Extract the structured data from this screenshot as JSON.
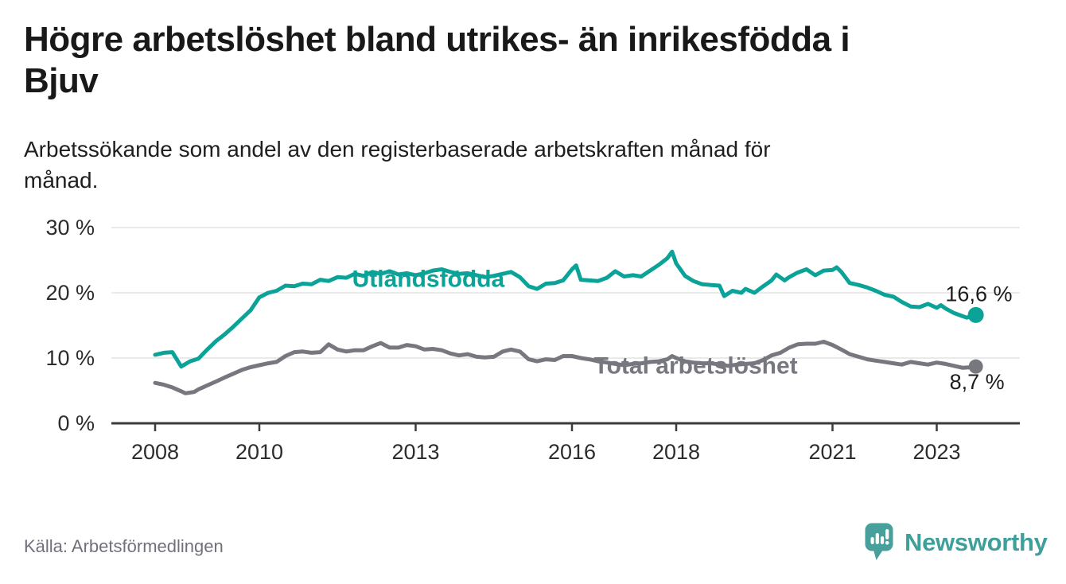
{
  "header": {
    "title_line1": "Högre arbetslöshet bland utrikes- än inrikesfödda i",
    "title_line2": "Bjuv",
    "subtitle_line1": "Arbetssökande som andel av den registerbaserade arbetskraften månad för",
    "subtitle_line2": "månad."
  },
  "footer": {
    "source": "Källa: Arbetsförmedlingen",
    "brand": "Newsworthy"
  },
  "colors": {
    "accent_teal": "#0ba298",
    "line_gray": "#77777f",
    "grid": "#e3e3e3",
    "axis": "#3b3b3b",
    "axis_text": "#2c2c2c",
    "annotation_text": "#1d1d1d",
    "brand_teal": "#47a09b"
  },
  "chart_data": {
    "type": "line",
    "title": "Högre arbetslöshet bland utrikes- än inrikesfödda i Bjuv",
    "subtitle": "Arbetssökande som andel av den registerbaserade arbetskraften månad för månad.",
    "xlabel": "",
    "ylabel": "",
    "x_axis": {
      "ticks": [
        2008,
        2010,
        2013,
        2016,
        2018,
        2021,
        2023
      ],
      "tick_labels": [
        "2008",
        "2010",
        "2013",
        "2016",
        "2018",
        "2021",
        "2023"
      ],
      "range": [
        2007.16,
        2024.6
      ]
    },
    "y_axis": {
      "ticks": [
        0,
        10,
        20,
        30
      ],
      "tick_labels": [
        "0 %",
        "10 %",
        "20 %",
        "30 %"
      ],
      "range": [
        0,
        30
      ],
      "grid": true
    },
    "legend_position": "inline-labels",
    "series": [
      {
        "name": "Utlandsfödda",
        "color": "#0ba298",
        "end_value": 16.6,
        "end_label": "16,6 %",
        "points": [
          [
            2008.0,
            10.5
          ],
          [
            2008.17,
            10.8
          ],
          [
            2008.33,
            10.9
          ],
          [
            2008.5,
            8.7
          ],
          [
            2008.67,
            9.5
          ],
          [
            2008.83,
            9.9
          ],
          [
            2009.0,
            11.3
          ],
          [
            2009.17,
            12.6
          ],
          [
            2009.33,
            13.6
          ],
          [
            2009.5,
            14.8
          ],
          [
            2009.67,
            16.1
          ],
          [
            2009.83,
            17.3
          ],
          [
            2010.0,
            19.3
          ],
          [
            2010.17,
            20.0
          ],
          [
            2010.33,
            20.3
          ],
          [
            2010.5,
            21.1
          ],
          [
            2010.67,
            21.0
          ],
          [
            2010.83,
            21.4
          ],
          [
            2011.0,
            21.3
          ],
          [
            2011.17,
            22.0
          ],
          [
            2011.33,
            21.8
          ],
          [
            2011.5,
            22.4
          ],
          [
            2011.67,
            22.3
          ],
          [
            2011.83,
            22.9
          ],
          [
            2012.0,
            22.6
          ],
          [
            2012.17,
            23.2
          ],
          [
            2012.33,
            22.9
          ],
          [
            2012.5,
            23.3
          ],
          [
            2012.67,
            22.8
          ],
          [
            2012.83,
            23.0
          ],
          [
            2013.0,
            22.7
          ],
          [
            2013.17,
            23.0
          ],
          [
            2013.33,
            23.4
          ],
          [
            2013.5,
            23.6
          ],
          [
            2013.67,
            23.2
          ],
          [
            2013.83,
            22.9
          ],
          [
            2014.0,
            23.0
          ],
          [
            2014.17,
            22.7
          ],
          [
            2014.33,
            22.4
          ],
          [
            2014.5,
            22.6
          ],
          [
            2014.67,
            22.9
          ],
          [
            2014.83,
            23.2
          ],
          [
            2015.0,
            22.4
          ],
          [
            2015.17,
            21.0
          ],
          [
            2015.33,
            20.6
          ],
          [
            2015.5,
            21.4
          ],
          [
            2015.67,
            21.5
          ],
          [
            2015.83,
            21.9
          ],
          [
            2016.0,
            23.6
          ],
          [
            2016.08,
            24.2
          ],
          [
            2016.17,
            22.0
          ],
          [
            2016.33,
            21.9
          ],
          [
            2016.5,
            21.8
          ],
          [
            2016.67,
            22.3
          ],
          [
            2016.83,
            23.3
          ],
          [
            2017.0,
            22.5
          ],
          [
            2017.17,
            22.7
          ],
          [
            2017.33,
            22.5
          ],
          [
            2017.5,
            23.4
          ],
          [
            2017.67,
            24.3
          ],
          [
            2017.83,
            25.3
          ],
          [
            2017.92,
            26.3
          ],
          [
            2018.0,
            24.5
          ],
          [
            2018.17,
            22.6
          ],
          [
            2018.33,
            21.8
          ],
          [
            2018.5,
            21.3
          ],
          [
            2018.67,
            21.2
          ],
          [
            2018.83,
            21.1
          ],
          [
            2018.92,
            19.5
          ],
          [
            2019.08,
            20.3
          ],
          [
            2019.25,
            20.0
          ],
          [
            2019.33,
            20.6
          ],
          [
            2019.5,
            20.0
          ],
          [
            2019.67,
            21.0
          ],
          [
            2019.83,
            21.9
          ],
          [
            2019.92,
            22.8
          ],
          [
            2020.08,
            21.9
          ],
          [
            2020.17,
            22.4
          ],
          [
            2020.33,
            23.1
          ],
          [
            2020.5,
            23.6
          ],
          [
            2020.67,
            22.7
          ],
          [
            2020.83,
            23.4
          ],
          [
            2021.0,
            23.5
          ],
          [
            2021.08,
            23.9
          ],
          [
            2021.17,
            23.2
          ],
          [
            2021.33,
            21.5
          ],
          [
            2021.5,
            21.2
          ],
          [
            2021.67,
            20.8
          ],
          [
            2021.83,
            20.3
          ],
          [
            2022.0,
            19.7
          ],
          [
            2022.17,
            19.4
          ],
          [
            2022.33,
            18.6
          ],
          [
            2022.5,
            17.9
          ],
          [
            2022.67,
            17.8
          ],
          [
            2022.83,
            18.3
          ],
          [
            2023.0,
            17.7
          ],
          [
            2023.08,
            18.1
          ],
          [
            2023.17,
            17.6
          ],
          [
            2023.33,
            16.9
          ],
          [
            2023.5,
            16.4
          ],
          [
            2023.58,
            16.2
          ],
          [
            2023.67,
            16.5
          ],
          [
            2023.75,
            16.6
          ]
        ]
      },
      {
        "name": "Total arbetslöshet",
        "color": "#77777f",
        "end_value": 8.7,
        "end_label": "8,7 %",
        "points": [
          [
            2008.0,
            6.2
          ],
          [
            2008.17,
            5.9
          ],
          [
            2008.33,
            5.5
          ],
          [
            2008.5,
            4.9
          ],
          [
            2008.58,
            4.6
          ],
          [
            2008.75,
            4.8
          ],
          [
            2008.83,
            5.2
          ],
          [
            2009.0,
            5.8
          ],
          [
            2009.17,
            6.4
          ],
          [
            2009.33,
            7.0
          ],
          [
            2009.5,
            7.6
          ],
          [
            2009.67,
            8.2
          ],
          [
            2009.83,
            8.6
          ],
          [
            2010.0,
            8.9
          ],
          [
            2010.17,
            9.2
          ],
          [
            2010.33,
            9.4
          ],
          [
            2010.5,
            10.3
          ],
          [
            2010.67,
            10.9
          ],
          [
            2010.83,
            11.0
          ],
          [
            2011.0,
            10.8
          ],
          [
            2011.17,
            10.9
          ],
          [
            2011.33,
            12.1
          ],
          [
            2011.5,
            11.3
          ],
          [
            2011.67,
            11.0
          ],
          [
            2011.83,
            11.2
          ],
          [
            2012.0,
            11.2
          ],
          [
            2012.17,
            11.8
          ],
          [
            2012.33,
            12.3
          ],
          [
            2012.5,
            11.6
          ],
          [
            2012.67,
            11.6
          ],
          [
            2012.83,
            12.0
          ],
          [
            2013.0,
            11.8
          ],
          [
            2013.17,
            11.3
          ],
          [
            2013.33,
            11.4
          ],
          [
            2013.5,
            11.2
          ],
          [
            2013.67,
            10.7
          ],
          [
            2013.83,
            10.4
          ],
          [
            2014.0,
            10.6
          ],
          [
            2014.17,
            10.2
          ],
          [
            2014.33,
            10.1
          ],
          [
            2014.5,
            10.2
          ],
          [
            2014.67,
            11.0
          ],
          [
            2014.83,
            11.3
          ],
          [
            2015.0,
            11.0
          ],
          [
            2015.17,
            9.8
          ],
          [
            2015.33,
            9.5
          ],
          [
            2015.5,
            9.8
          ],
          [
            2015.67,
            9.7
          ],
          [
            2015.83,
            10.3
          ],
          [
            2016.0,
            10.3
          ],
          [
            2016.17,
            10.0
          ],
          [
            2016.33,
            9.8
          ],
          [
            2016.5,
            9.5
          ],
          [
            2016.67,
            9.3
          ],
          [
            2016.83,
            9.1
          ],
          [
            2017.0,
            8.9
          ],
          [
            2017.17,
            9.1
          ],
          [
            2017.33,
            9.2
          ],
          [
            2017.5,
            9.4
          ],
          [
            2017.67,
            9.5
          ],
          [
            2017.83,
            9.8
          ],
          [
            2017.92,
            10.3
          ],
          [
            2018.0,
            10.0
          ],
          [
            2018.17,
            9.5
          ],
          [
            2018.33,
            9.3
          ],
          [
            2018.5,
            9.2
          ],
          [
            2018.67,
            9.2
          ],
          [
            2018.83,
            9.0
          ],
          [
            2019.0,
            8.8
          ],
          [
            2019.17,
            9.0
          ],
          [
            2019.33,
            9.1
          ],
          [
            2019.5,
            9.2
          ],
          [
            2019.67,
            9.7
          ],
          [
            2019.83,
            10.4
          ],
          [
            2020.0,
            10.8
          ],
          [
            2020.17,
            11.6
          ],
          [
            2020.33,
            12.1
          ],
          [
            2020.5,
            12.2
          ],
          [
            2020.67,
            12.2
          ],
          [
            2020.83,
            12.5
          ],
          [
            2021.0,
            12.0
          ],
          [
            2021.17,
            11.3
          ],
          [
            2021.33,
            10.6
          ],
          [
            2021.5,
            10.2
          ],
          [
            2021.67,
            9.8
          ],
          [
            2021.83,
            9.6
          ],
          [
            2022.0,
            9.4
          ],
          [
            2022.17,
            9.2
          ],
          [
            2022.33,
            9.0
          ],
          [
            2022.5,
            9.4
          ],
          [
            2022.67,
            9.2
          ],
          [
            2022.83,
            9.0
          ],
          [
            2023.0,
            9.3
          ],
          [
            2023.17,
            9.1
          ],
          [
            2023.33,
            8.8
          ],
          [
            2023.5,
            8.5
          ],
          [
            2023.67,
            8.6
          ],
          [
            2023.75,
            8.7
          ]
        ]
      }
    ],
    "annotations": [
      {
        "text": "Utlandsfödda",
        "x": 2011.78,
        "y": 21.9,
        "color": "#0ba298",
        "weight": "bold",
        "size": 30,
        "anchor": "start"
      },
      {
        "text": "Total arbetslöshet",
        "x": 2016.42,
        "y": 8.6,
        "color": "#77777f",
        "weight": "bold",
        "size": 30,
        "anchor": "start"
      },
      {
        "text": "16,6 %",
        "x": 2024.45,
        "y": 19.6,
        "color": "#1d1d1d",
        "weight": "normal",
        "size": 27,
        "anchor": "end"
      },
      {
        "text": "8,7 %",
        "x": 2024.3,
        "y": 6.1,
        "color": "#1d1d1d",
        "weight": "normal",
        "size": 27,
        "anchor": "end"
      }
    ]
  }
}
